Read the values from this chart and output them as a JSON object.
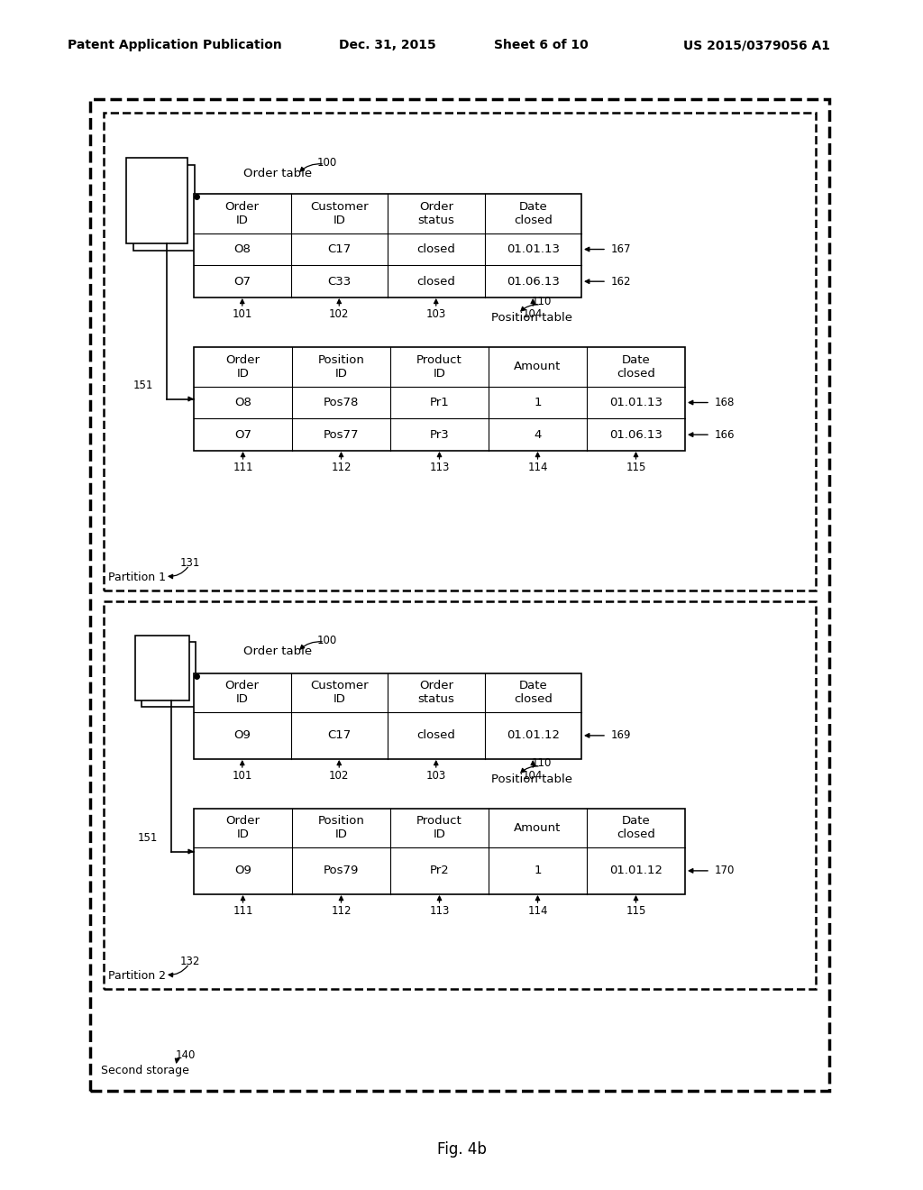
{
  "bg_color": "#ffffff",
  "header_text": "Patent Application Publication",
  "header_date": "Dec. 31, 2015",
  "header_sheet": "Sheet 6 of 10",
  "header_patent": "US 2015/0379056 A1",
  "figure_label": "Fig. 4b",
  "p1_order_cols": [
    "Order\nID",
    "Customer\nID",
    "Order\nstatus",
    "Date\nclosed"
  ],
  "p1_order_rows": [
    [
      "O8",
      "C17",
      "closed",
      "01.01.13"
    ],
    [
      "O7",
      "C33",
      "closed",
      "01.06.13"
    ]
  ],
  "p1_order_rownums": [
    "167",
    "162"
  ],
  "p1_order_colnums": [
    "101",
    "102",
    "103",
    "104"
  ],
  "p1_pos_cols": [
    "Order\nID",
    "Position\nID",
    "Product\nID",
    "Amount",
    "Date\nclosed"
  ],
  "p1_pos_rows": [
    [
      "O8",
      "Pos78",
      "Pr1",
      "1",
      "01.01.13"
    ],
    [
      "O7",
      "Pos77",
      "Pr3",
      "4",
      "01.06.13"
    ]
  ],
  "p1_pos_rownums": [
    "168",
    "166"
  ],
  "p1_pos_colnums": [
    "111",
    "112",
    "113",
    "114",
    "115"
  ],
  "p2_order_cols": [
    "Order\nID",
    "Customer\nID",
    "Order\nstatus",
    "Date\nclosed"
  ],
  "p2_order_rows": [
    [
      "O9",
      "C17",
      "closed",
      "01.01.12"
    ]
  ],
  "p2_order_rownums": [
    "169"
  ],
  "p2_order_colnums": [
    "101",
    "102",
    "103",
    "104"
  ],
  "p2_pos_cols": [
    "Order\nID",
    "Position\nID",
    "Product\nID",
    "Amount",
    "Date\nclosed"
  ],
  "p2_pos_rows": [
    [
      "O9",
      "Pos79",
      "Pr2",
      "1",
      "01.01.12"
    ]
  ],
  "p2_pos_rownums": [
    "170"
  ],
  "p2_pos_colnums": [
    "111",
    "112",
    "113",
    "114",
    "115"
  ]
}
